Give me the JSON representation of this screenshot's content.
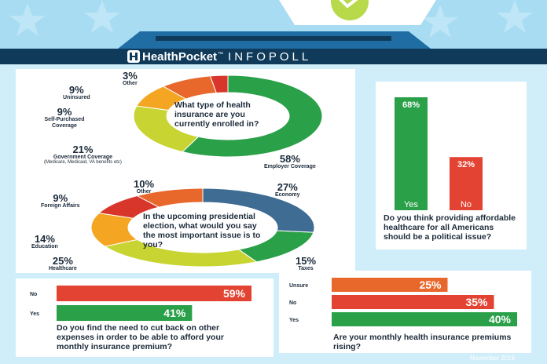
{
  "header": {
    "brand": "HealthPocket",
    "trademark": "™",
    "product": "INFOPOLL",
    "footnote": "November 2019",
    "colors": {
      "sky": "#a7dcf2",
      "banner": "#0f3a5a",
      "box": "#1f6da3",
      "check": "#b7d94a"
    }
  },
  "chart_data": [
    {
      "type": "pie",
      "style": "donut",
      "question": "What type of health insurance are you currently enrolled in?",
      "slices": [
        {
          "label": "Employer Coverage",
          "value": 58,
          "pct_label": "58%",
          "color": "#2aa048"
        },
        {
          "label": "Government Coverage",
          "sublabel": "(Medicare, Medicaid, VA benefits etc)",
          "value": 21,
          "pct_label": "21%",
          "color": "#c8d432"
        },
        {
          "label": "Self-Purchased Coverage",
          "value": 9,
          "pct_label": "9%",
          "color": "#f4a623"
        },
        {
          "label": "Uninsured",
          "value": 9,
          "pct_label": "9%",
          "color": "#e8672a"
        },
        {
          "label": "Other",
          "value": 3,
          "pct_label": "3%",
          "color": "#d8362a"
        }
      ]
    },
    {
      "type": "pie",
      "style": "donut",
      "question": "In the upcoming presidential election, what would you say the most important issue is to you?",
      "slices": [
        {
          "label": "Economy",
          "value": 27,
          "pct_label": "27%",
          "color": "#3f6c93"
        },
        {
          "label": "Taxes",
          "value": 15,
          "pct_label": "15%",
          "color": "#2aa048"
        },
        {
          "label": "Healthcare",
          "value": 25,
          "pct_label": "25%",
          "color": "#c8d432"
        },
        {
          "label": "Education",
          "value": 14,
          "pct_label": "14%",
          "color": "#f4a623"
        },
        {
          "label": "Foreign Affairs",
          "value": 9,
          "pct_label": "9%",
          "color": "#d8362a"
        },
        {
          "label": "Other",
          "value": 10,
          "pct_label": "10%",
          "color": "#e8672a"
        }
      ]
    },
    {
      "type": "bar",
      "orientation": "vertical",
      "question": "Do you think providing affordable healthcare for all Americans should be a political issue?",
      "categories": [
        "Yes",
        "No"
      ],
      "values": [
        68,
        32
      ],
      "value_labels": [
        "68%",
        "32%"
      ],
      "colors": [
        "#2aa048",
        "#e34332"
      ],
      "ylim": [
        0,
        68
      ]
    },
    {
      "type": "bar",
      "orientation": "horizontal",
      "question": "Do you find the need to cut back on other expenses in order to be able to afford your monthly insurance premium?",
      "categories": [
        "No",
        "Yes"
      ],
      "values": [
        59,
        41
      ],
      "value_labels": [
        "59%",
        "41%"
      ],
      "colors": [
        "#e34332",
        "#2aa048"
      ],
      "xlim": [
        0,
        59
      ]
    },
    {
      "type": "bar",
      "orientation": "horizontal",
      "question": "Are your monthly health insurance premiums rising?",
      "categories": [
        "Unsure",
        "No",
        "Yes"
      ],
      "values": [
        25,
        35,
        40
      ],
      "value_labels": [
        "25%",
        "35%",
        "40%"
      ],
      "colors": [
        "#e8672a",
        "#e34332",
        "#2aa048"
      ],
      "xlim": [
        0,
        40
      ]
    }
  ]
}
